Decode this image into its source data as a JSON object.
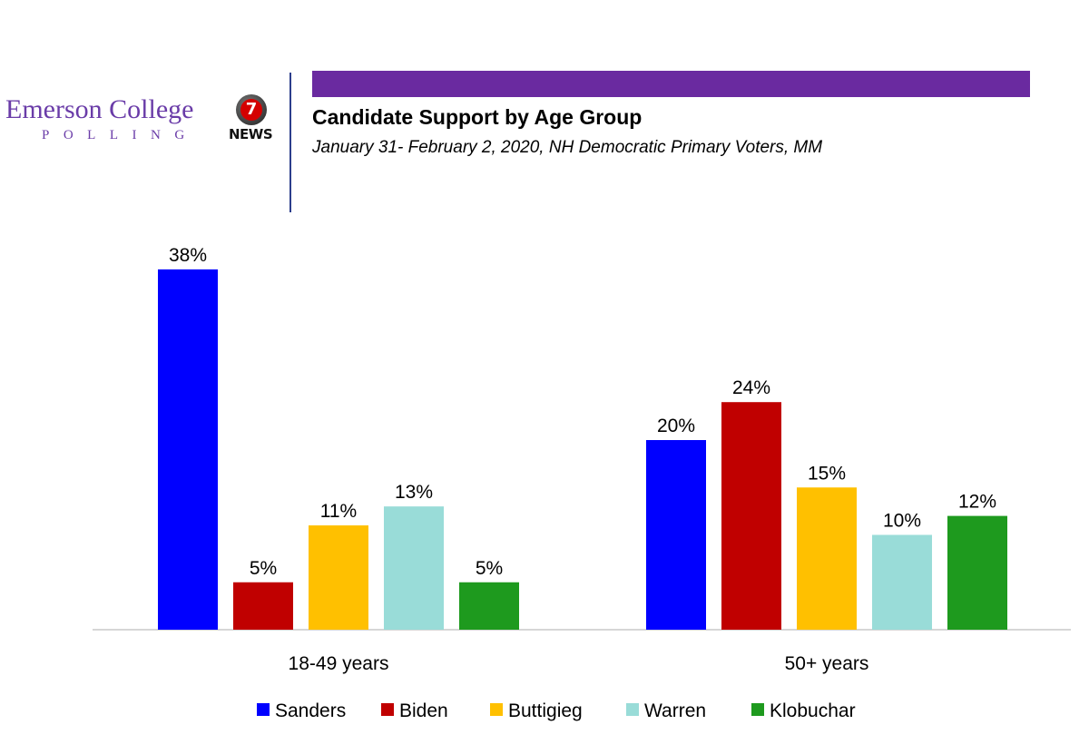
{
  "branding": {
    "emerson_name": "Emerson College",
    "emerson_sub": "POLLING",
    "news_numeral": "7",
    "news_label": "NEWS"
  },
  "header": {
    "title": "Candidate Support by Age Group",
    "subtitle": "January 31- February 2, 2020, NH Democratic Primary Voters, MM",
    "bar_color": "#6a2aa0"
  },
  "chart_data": {
    "type": "bar",
    "title": "Candidate Support by Age Group",
    "categories": [
      "18-49 years",
      "50+ years"
    ],
    "series": [
      {
        "name": "Sanders",
        "color": "#0000ff",
        "values": [
          38,
          20
        ],
        "labels": [
          "38%",
          "20%"
        ]
      },
      {
        "name": "Biden",
        "color": "#c00000",
        "values": [
          5,
          24
        ],
        "labels": [
          "5%",
          "24%"
        ]
      },
      {
        "name": "Buttigieg",
        "color": "#ffc000",
        "values": [
          11,
          15
        ],
        "labels": [
          "11%",
          "15%"
        ]
      },
      {
        "name": "Warren",
        "color": "#99dcd8",
        "values": [
          13,
          10
        ],
        "labels": [
          "13%",
          "10%"
        ]
      },
      {
        "name": "Klobuchar",
        "color": "#1e9a1e",
        "values": [
          5,
          12
        ],
        "labels": [
          "5%",
          "12%"
        ]
      }
    ],
    "ylim": [
      0,
      38
    ],
    "grid": false,
    "legend_position": "bottom"
  }
}
